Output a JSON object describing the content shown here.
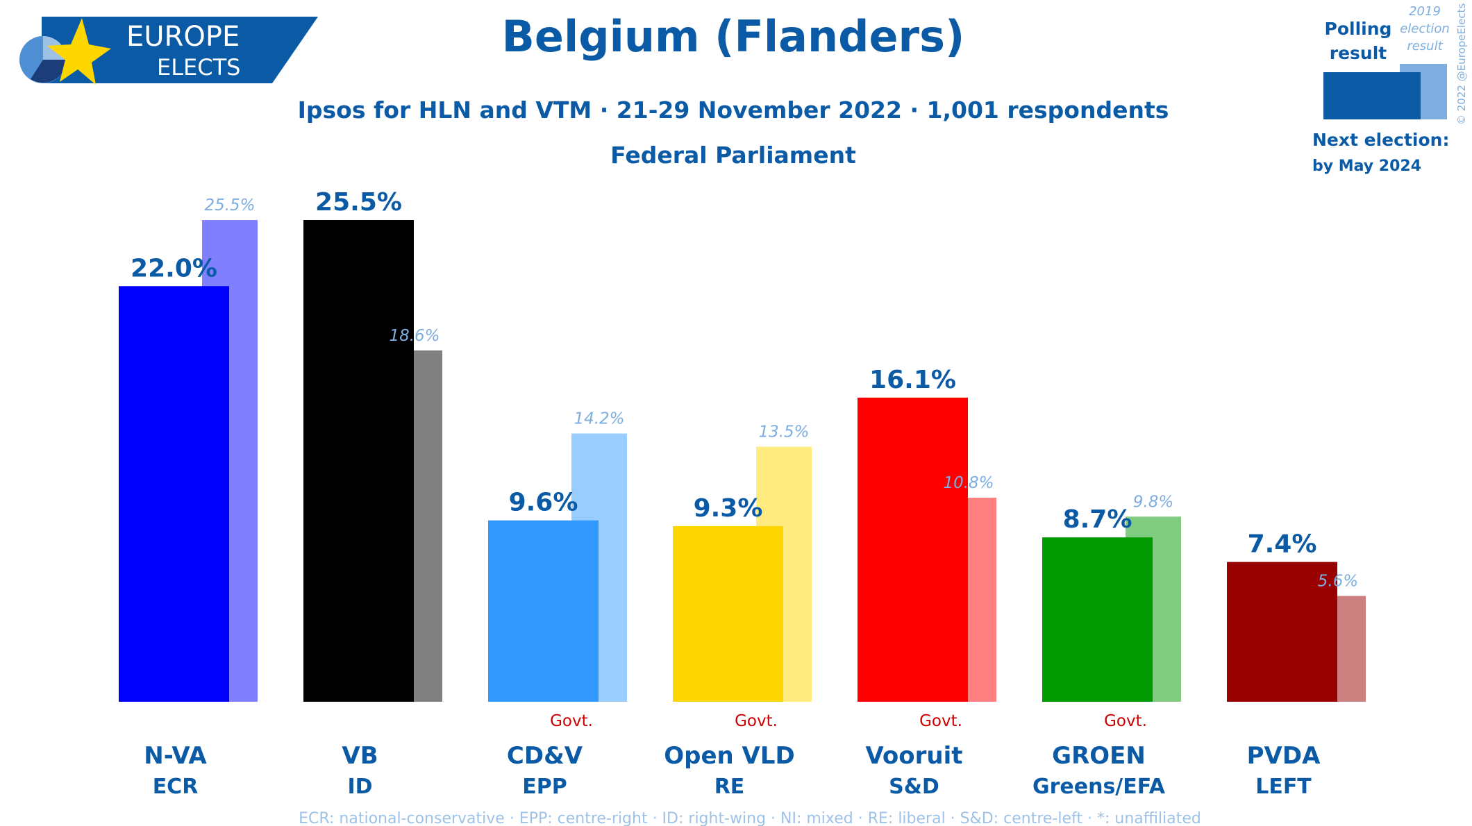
{
  "logo": {
    "line1": "EUROPE",
    "line2": "ELECTS",
    "brand_color": "#0b5aa6"
  },
  "header": {
    "title": "Belgium (Flanders)",
    "subtitle": "Ipsos for HLN and VTM · 21-29 November 2022 · 1,001 respondents",
    "subtitle2": "Federal Parliament"
  },
  "legend": {
    "polling_line1": "Polling",
    "polling_line2": "result",
    "prev_line1": "2019",
    "prev_line2": "election",
    "prev_line3": "result",
    "next_line1": "Next election:",
    "next_line2": "by May 2024"
  },
  "copyright": "© 2022 @EuropeElects",
  "footer": "ECR: national-conservative · EPP: centre-right · ID: right-wing · NI: mixed · RE: liberal · S&D: centre-left · *: unaffiliated",
  "chart_data": {
    "type": "bar",
    "title": "Belgium (Flanders)",
    "categories": [
      "N-VA",
      "VB",
      "CD&V",
      "Open VLD",
      "Vooruit",
      "GROEN",
      "PVDA"
    ],
    "groups": [
      "ECR",
      "ID",
      "EPP",
      "RE",
      "S&D",
      "Greens/EFA",
      "LEFT"
    ],
    "series": [
      {
        "name": "Polling result",
        "values": [
          22.0,
          25.5,
          9.6,
          9.3,
          16.1,
          8.7,
          7.4
        ]
      },
      {
        "name": "2019 election result",
        "values": [
          25.5,
          18.6,
          14.2,
          13.5,
          10.8,
          9.8,
          5.6
        ]
      }
    ],
    "value_labels": [
      "22.0%",
      "25.5%",
      "9.6%",
      "9.3%",
      "16.1%",
      "8.7%",
      "7.4%"
    ],
    "prev_labels": [
      "25.5%",
      "18.6%",
      "14.2%",
      "13.5%",
      "10.8%",
      "9.8%",
      "5.6%"
    ],
    "govt_label": "Govt.",
    "govt": [
      false,
      false,
      true,
      true,
      true,
      true,
      false
    ],
    "colors": [
      "#0000ff",
      "#000000",
      "#3399ff",
      "#ffd700",
      "#ff0000",
      "#009900",
      "#990000"
    ],
    "prev_colors": [
      "#8080ff",
      "#808080",
      "#99ccff",
      "#ffeb80",
      "#ff8080",
      "#80cc80",
      "#cc8080"
    ],
    "ylim": [
      0,
      25.5
    ],
    "grid": false
  }
}
